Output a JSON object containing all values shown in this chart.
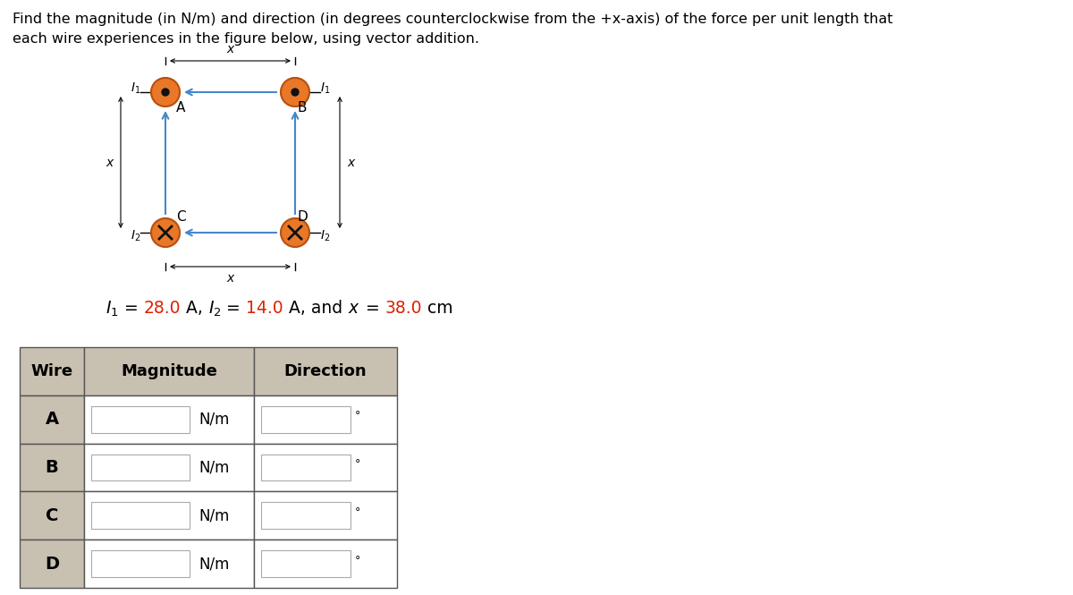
{
  "title_line1": "Find the magnitude (in N/m) and direction (in degrees counterclockwise from the +x-axis) of the force per unit length that",
  "title_line2": "each wire experiences in the figure below, using vector addition.",
  "wire_labels": [
    "A",
    "B",
    "C",
    "D"
  ],
  "col_headers": [
    "Wire",
    "Magnitude",
    "Direction"
  ],
  "unit_label": "N/m",
  "degree_symbol": "°",
  "bg_color": "#ffffff",
  "table_header_bg": "#c8c0b0",
  "table_cell_bg": "#ffffff",
  "table_border_color": "#555555",
  "wire_circle_fill": "#e87828",
  "arrow_color": "#4488cc",
  "red_color": "#dd2200",
  "fig_width": 12.0,
  "fig_height": 6.65,
  "title_fontsize": 11.5,
  "eq_fontsize": 13.5,
  "table_header_fontsize": 13,
  "table_wire_fontsize": 14,
  "table_body_fontsize": 12
}
